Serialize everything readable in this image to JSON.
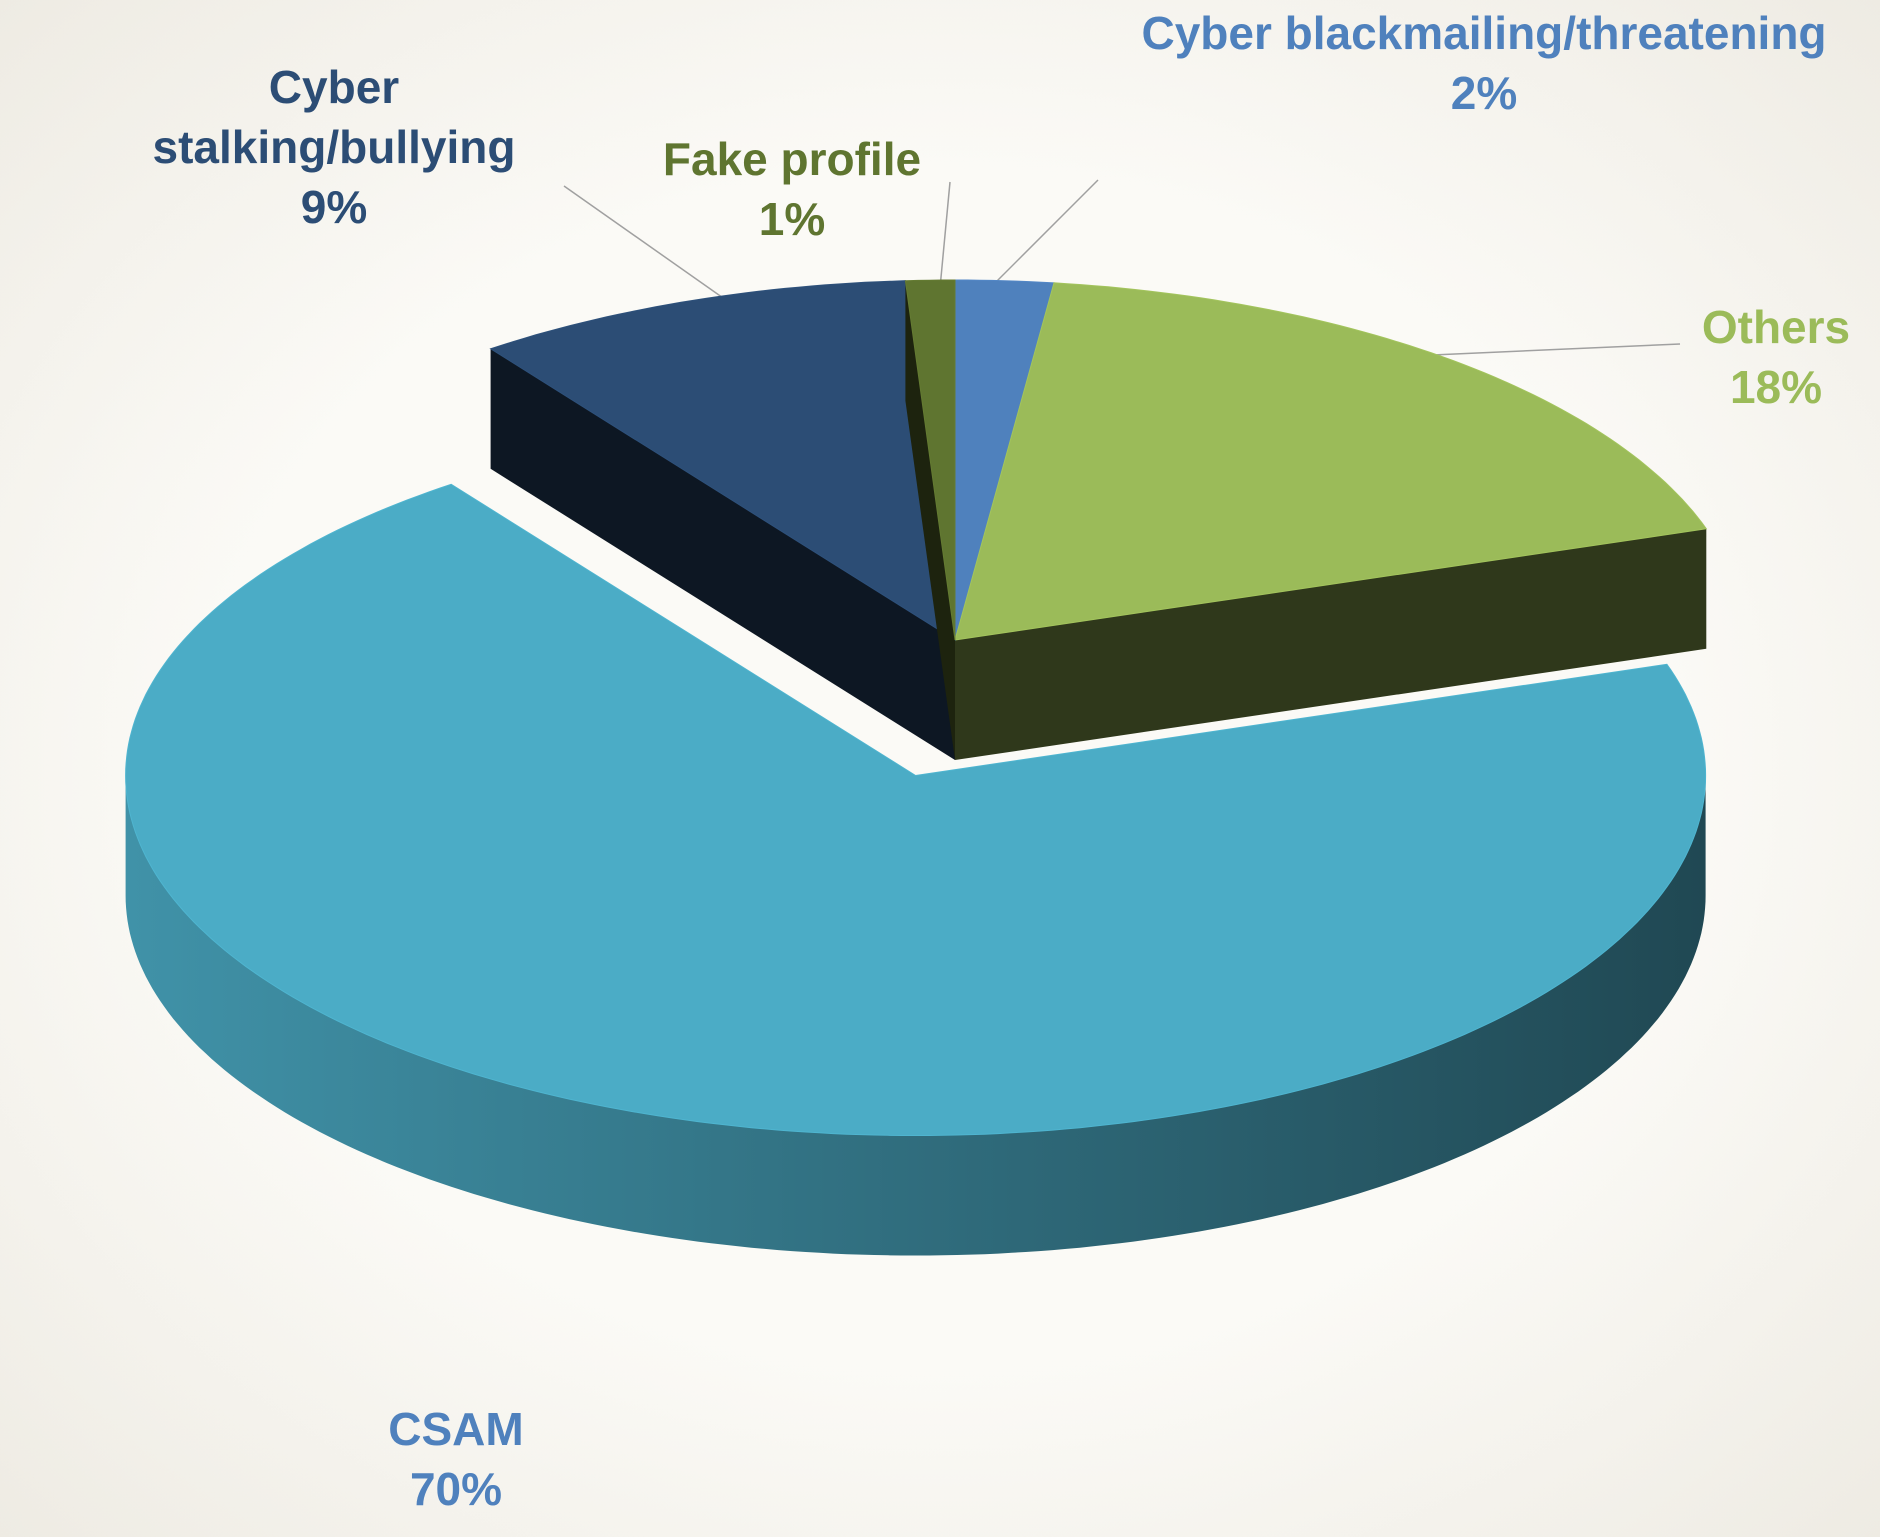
{
  "chart_data": {
    "type": "pie",
    "categories": [
      "Cyber blackmailing/threatening",
      "Others",
      "CSAM",
      "Cyber stalking/bullying",
      "Fake profile"
    ],
    "values": [
      2,
      18,
      70,
      9,
      1
    ],
    "value_labels": [
      "2%",
      "18%",
      "70%",
      "9%",
      "1%"
    ],
    "colors": [
      "#4f81bd",
      "#9bbb59",
      "#4bacc6",
      "#2c4d75",
      "#5f7530"
    ],
    "label_colors": [
      "#4f81bd",
      "#9bbb59",
      "#4f81bd",
      "#2c4d75",
      "#5f7530"
    ]
  }
}
